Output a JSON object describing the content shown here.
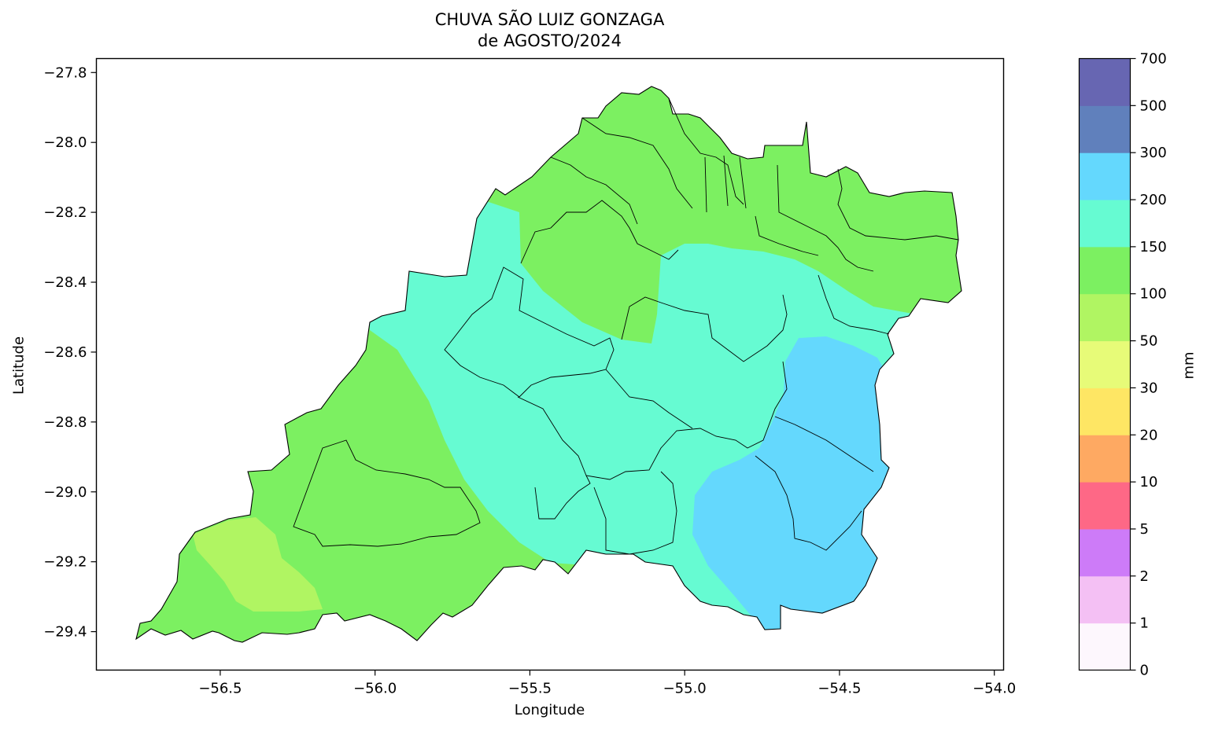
{
  "title_line1": "CHUVA SÃO LUIZ GONZAGA",
  "title_line2": "de AGOSTO/2024",
  "map": {
    "xlabel": "Longitude",
    "ylabel": "Latitude",
    "xlim": [
      -56.9,
      -53.97
    ],
    "ylim": [
      -29.51,
      -27.76
    ],
    "x_ticks": [
      -56.5,
      -56.0,
      -55.5,
      -55.0,
      -54.5,
      -54.0
    ],
    "x_tick_labels": [
      "−56.5",
      "−56.0",
      "−55.5",
      "−55.0",
      "−54.5",
      "−54.0"
    ],
    "y_ticks": [
      -27.8,
      -28.0,
      -28.2,
      -28.4,
      -28.6,
      -28.8,
      -29.0,
      -29.2,
      -29.4
    ],
    "y_tick_labels": [
      "−27.8",
      "−28.0",
      "−28.2",
      "−28.4",
      "−28.6",
      "−28.8",
      "−29.0",
      "−29.2",
      "−29.4"
    ]
  },
  "colorbar": {
    "label": "mm",
    "bounds": [
      "0",
      "1",
      "2",
      "5",
      "10",
      "20",
      "30",
      "50",
      "100",
      "150",
      "200",
      "300",
      "500",
      "700"
    ],
    "colors": [
      "#fdf7fd",
      "#f4c0f4",
      "#cd7bf8",
      "#fe6886",
      "#fea962",
      "#fee664",
      "#e7fb78",
      "#b0f562",
      "#7cf061",
      "#66fbd2",
      "#64d8fd",
      "#6080bc",
      "#6766b2"
    ]
  },
  "rainfall_zones": [
    {
      "name": "lower-band-light-green",
      "class_range": "50–100 mm",
      "color": "#b0f562"
    },
    {
      "name": "green-zone",
      "class_range": "100–150 mm",
      "color": "#7cf061"
    },
    {
      "name": "aqua-zone",
      "class_range": "150–200 mm",
      "color": "#66fbd2"
    },
    {
      "name": "blue-zone",
      "class_range": "200–300 mm",
      "color": "#64d8fd"
    }
  ]
}
